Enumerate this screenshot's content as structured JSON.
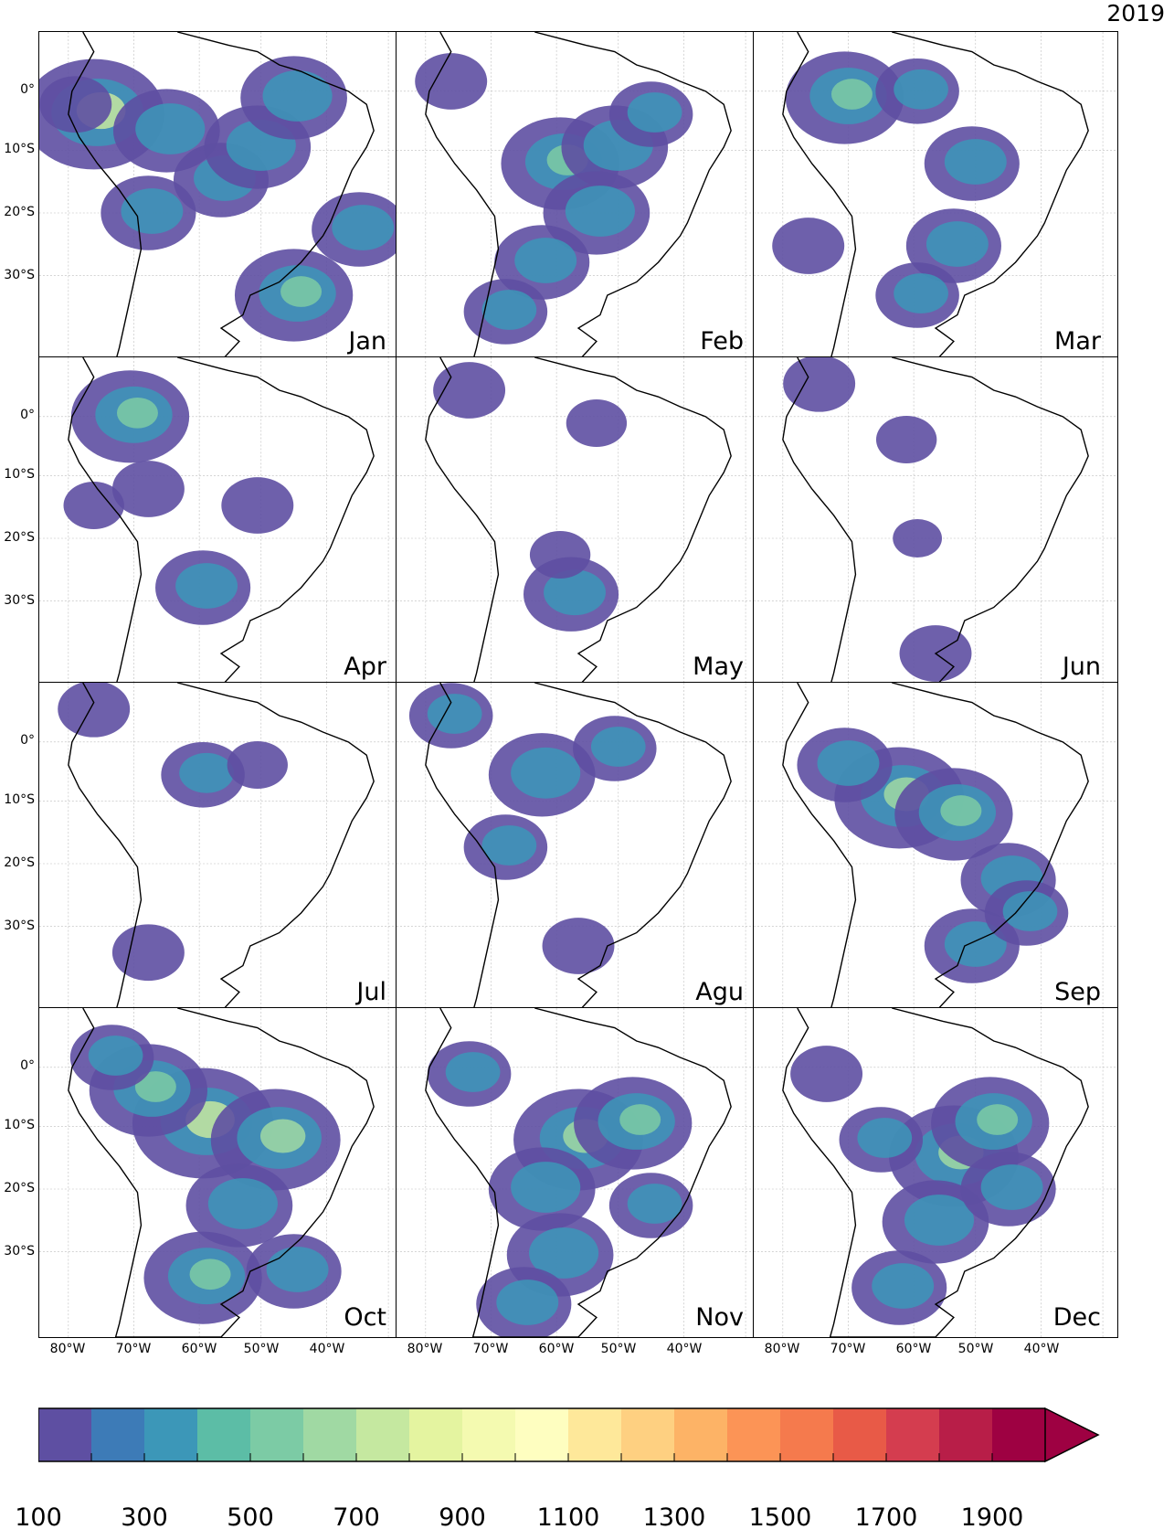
{
  "year": "2019",
  "months": [
    {
      "label": "Jan",
      "activity": [
        [
          15,
          25,
          0.9
        ],
        [
          35,
          30,
          0.6
        ],
        [
          50,
          45,
          0.5
        ],
        [
          60,
          35,
          0.6
        ],
        [
          70,
          20,
          0.6
        ],
        [
          30,
          55,
          0.5
        ],
        [
          70,
          80,
          0.7
        ],
        [
          88,
          60,
          0.5
        ],
        [
          10,
          22,
          0.3
        ]
      ]
    },
    {
      "label": "Feb",
      "activity": [
        [
          45,
          40,
          0.7
        ],
        [
          60,
          35,
          0.6
        ],
        [
          55,
          55,
          0.6
        ],
        [
          40,
          70,
          0.5
        ],
        [
          30,
          85,
          0.4
        ],
        [
          70,
          25,
          0.4
        ],
        [
          15,
          15,
          0.3
        ]
      ]
    },
    {
      "label": "Mar",
      "activity": [
        [
          25,
          20,
          0.7
        ],
        [
          45,
          18,
          0.4
        ],
        [
          60,
          40,
          0.5
        ],
        [
          55,
          65,
          0.5
        ],
        [
          45,
          80,
          0.4
        ],
        [
          15,
          65,
          0.3
        ]
      ]
    },
    {
      "label": "Apr",
      "activity": [
        [
          25,
          18,
          0.7
        ],
        [
          45,
          70,
          0.5
        ],
        [
          60,
          45,
          0.3
        ],
        [
          30,
          40,
          0.3
        ],
        [
          15,
          45,
          0.2
        ]
      ]
    },
    {
      "label": "May",
      "activity": [
        [
          48,
          72,
          0.5
        ],
        [
          45,
          60,
          0.2
        ],
        [
          20,
          10,
          0.3
        ],
        [
          55,
          20,
          0.2
        ]
      ]
    },
    {
      "label": "Jun",
      "activity": [
        [
          50,
          90,
          0.3
        ],
        [
          42,
          25,
          0.2
        ],
        [
          18,
          8,
          0.3
        ],
        [
          45,
          55,
          0.1
        ]
      ]
    },
    {
      "label": "Jul",
      "activity": [
        [
          45,
          28,
          0.4
        ],
        [
          30,
          82,
          0.3
        ],
        [
          15,
          8,
          0.3
        ],
        [
          60,
          25,
          0.2
        ]
      ]
    },
    {
      "label": "Agu",
      "activity": [
        [
          40,
          28,
          0.6
        ],
        [
          30,
          50,
          0.4
        ],
        [
          50,
          80,
          0.3
        ],
        [
          15,
          10,
          0.4
        ],
        [
          60,
          20,
          0.4
        ]
      ]
    },
    {
      "label": "Sep",
      "activity": [
        [
          40,
          35,
          0.8
        ],
        [
          55,
          40,
          0.7
        ],
        [
          70,
          60,
          0.5
        ],
        [
          60,
          80,
          0.5
        ],
        [
          25,
          25,
          0.5
        ],
        [
          75,
          70,
          0.4
        ]
      ]
    },
    {
      "label": "Oct",
      "activity": [
        [
          45,
          35,
          0.9
        ],
        [
          65,
          40,
          0.8
        ],
        [
          30,
          25,
          0.7
        ],
        [
          55,
          60,
          0.6
        ],
        [
          45,
          82,
          0.7
        ],
        [
          70,
          80,
          0.5
        ],
        [
          20,
          15,
          0.4
        ]
      ]
    },
    {
      "label": "Nov",
      "activity": [
        [
          50,
          40,
          0.8
        ],
        [
          65,
          35,
          0.7
        ],
        [
          40,
          55,
          0.6
        ],
        [
          45,
          75,
          0.6
        ],
        [
          35,
          90,
          0.5
        ],
        [
          70,
          60,
          0.4
        ],
        [
          20,
          20,
          0.4
        ]
      ]
    },
    {
      "label": "Dec",
      "activity": [
        [
          55,
          45,
          0.8
        ],
        [
          65,
          35,
          0.7
        ],
        [
          50,
          65,
          0.6
        ],
        [
          40,
          85,
          0.5
        ],
        [
          70,
          55,
          0.5
        ],
        [
          35,
          40,
          0.4
        ],
        [
          20,
          20,
          0.3
        ]
      ]
    }
  ],
  "lat_labels": [
    "0°",
    "10°S",
    "20°S",
    "30°S"
  ],
  "lon_labels": [
    "80°W",
    "70°W",
    "60°W",
    "50°W",
    "40°W"
  ],
  "colorbar": {
    "colors": [
      "#5e4fa2",
      "#3d7bb7",
      "#3c97b8",
      "#5cbda6",
      "#7ccba5",
      "#a0d9a3",
      "#c5e8a0",
      "#e4f4a0",
      "#f4fab0",
      "#fefec0",
      "#fee89a",
      "#fed081",
      "#fdb366",
      "#fc9456",
      "#f57a4d",
      "#e85a47",
      "#d43d4f",
      "#b81e48",
      "#9e0142"
    ],
    "extend_color": "#9e0142",
    "tick_labels": [
      "100",
      "300",
      "500",
      "700",
      "900",
      "1100",
      "1300",
      "1500",
      "1700",
      "1900"
    ]
  }
}
